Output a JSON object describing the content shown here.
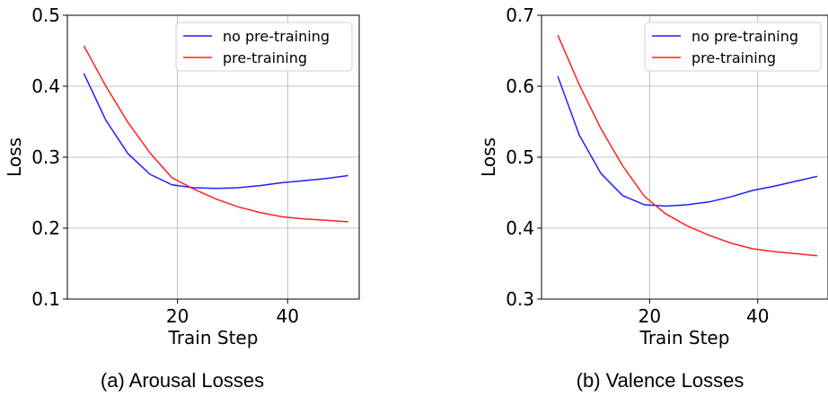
{
  "chart_data": [
    {
      "type": "line",
      "caption": "(a) Arousal Losses",
      "xlabel": "Train Step",
      "ylabel": "Loss",
      "xlim": [
        0,
        53
      ],
      "ylim": [
        0.1,
        0.5
      ],
      "xticks": [
        20,
        40
      ],
      "yticks": [
        0.1,
        0.2,
        0.3,
        0.4,
        0.5
      ],
      "grid": true,
      "legend_position": "top-right",
      "series": [
        {
          "name": "no pre-training",
          "color": "#1f1fff",
          "x": [
            3,
            7,
            11,
            15,
            19,
            23,
            27,
            31,
            35,
            39,
            43,
            47,
            51
          ],
          "y": [
            0.418,
            0.352,
            0.305,
            0.276,
            0.261,
            0.257,
            0.256,
            0.257,
            0.26,
            0.264,
            0.267,
            0.27,
            0.274
          ]
        },
        {
          "name": "pre-training",
          "color": "#ff2020",
          "x": [
            3,
            7,
            11,
            15,
            19,
            23,
            27,
            31,
            35,
            39,
            43,
            47,
            51
          ],
          "y": [
            0.457,
            0.4,
            0.349,
            0.306,
            0.271,
            0.255,
            0.241,
            0.23,
            0.222,
            0.216,
            0.213,
            0.211,
            0.209
          ]
        }
      ]
    },
    {
      "type": "line",
      "caption": "(b) Valence Losses",
      "xlabel": "Train Step",
      "ylabel": "Loss",
      "xlim": [
        0,
        53
      ],
      "ylim": [
        0.3,
        0.7
      ],
      "xticks": [
        20,
        40
      ],
      "yticks": [
        0.3,
        0.4,
        0.5,
        0.6,
        0.7
      ],
      "grid": true,
      "legend_position": "top-right",
      "series": [
        {
          "name": "no pre-training",
          "color": "#1f1fff",
          "x": [
            3,
            7,
            11,
            15,
            19,
            23,
            27,
            31,
            35,
            39,
            43,
            47,
            51
          ],
          "y": [
            0.614,
            0.531,
            0.477,
            0.446,
            0.433,
            0.431,
            0.433,
            0.437,
            0.444,
            0.453,
            0.459,
            0.466,
            0.473
          ]
        },
        {
          "name": "pre-training",
          "color": "#ff2020",
          "x": [
            3,
            7,
            11,
            15,
            19,
            23,
            27,
            31,
            35,
            39,
            43,
            47,
            51
          ],
          "y": [
            0.672,
            0.602,
            0.54,
            0.488,
            0.445,
            0.42,
            0.403,
            0.39,
            0.379,
            0.371,
            0.367,
            0.364,
            0.361
          ]
        }
      ]
    }
  ]
}
